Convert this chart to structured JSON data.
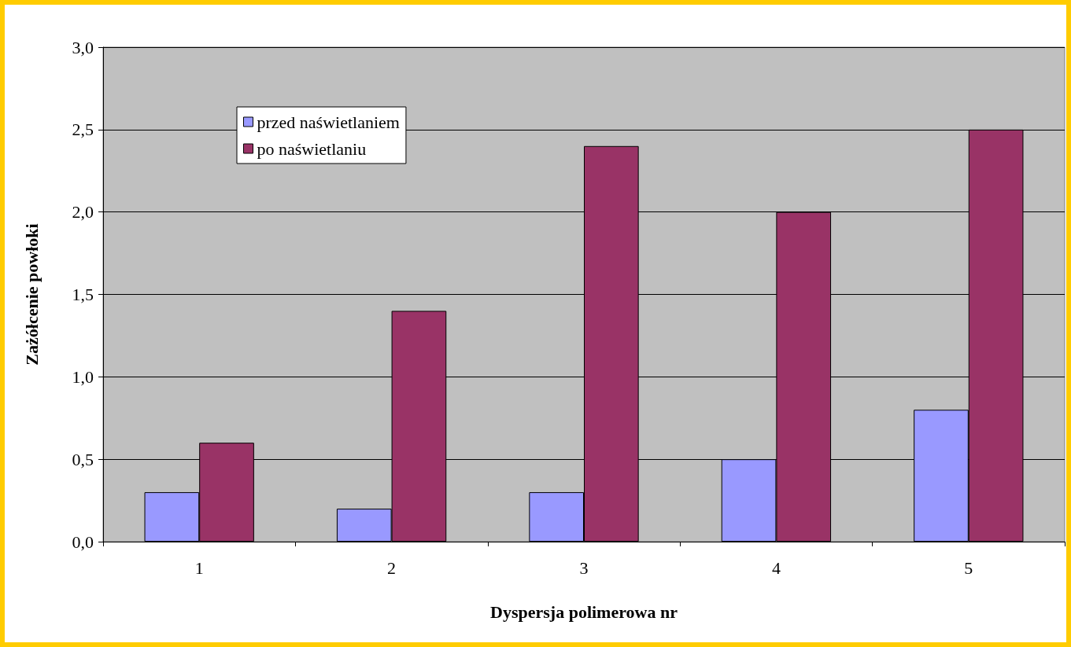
{
  "chart_data": {
    "type": "bar",
    "xlabel": "Dyspersja polimerowa nr",
    "ylabel": "Zażółcenie powłoki",
    "categories": [
      "1",
      "2",
      "3",
      "4",
      "5"
    ],
    "series": [
      {
        "name": "przed naświetlaniem",
        "color": "#9999ff",
        "values": [
          0.3,
          0.2,
          0.3,
          0.5,
          0.8
        ]
      },
      {
        "name": "po naświetlaniu",
        "color": "#993366",
        "values": [
          0.6,
          1.4,
          2.4,
          2.0,
          2.5
        ]
      }
    ],
    "ylim": [
      0,
      3
    ],
    "yticks": [
      {
        "value": 0,
        "label": "0,0"
      },
      {
        "value": 0.5,
        "label": "0,5"
      },
      {
        "value": 1,
        "label": "1,0"
      },
      {
        "value": 1.5,
        "label": "1,5"
      },
      {
        "value": 2,
        "label": "2,0"
      },
      {
        "value": 2.5,
        "label": "2,5"
      },
      {
        "value": 3,
        "label": "3,0"
      }
    ],
    "grid": "y",
    "legend": "top left"
  }
}
